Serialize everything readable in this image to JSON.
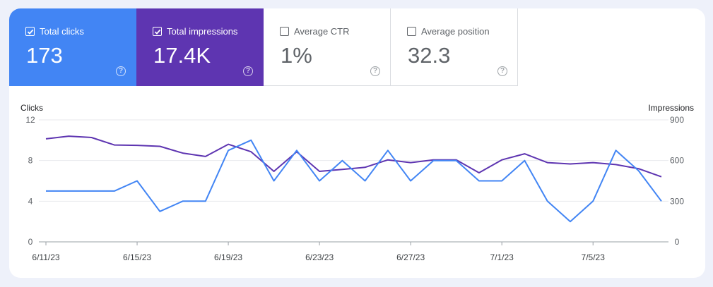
{
  "metrics": [
    {
      "label": "Total clicks",
      "value": "173",
      "checked": true,
      "color": "#4285f4"
    },
    {
      "label": "Total impressions",
      "value": "17.4K",
      "checked": true,
      "color": "#5e35b1"
    },
    {
      "label": "Average CTR",
      "value": "1%",
      "checked": false,
      "color": "#ffffff"
    },
    {
      "label": "Average position",
      "value": "32.3",
      "checked": false,
      "color": "#ffffff"
    }
  ],
  "help_icon": "help-circle-icon",
  "chart_data": {
    "type": "line",
    "y_left_label": "Clicks",
    "y_right_label": "Impressions",
    "y_left_ticks": [
      "0",
      "4",
      "8",
      "12"
    ],
    "y_right_ticks": [
      "0",
      "300",
      "600",
      "900"
    ],
    "y_left_lim": [
      0,
      12
    ],
    "y_right_lim": [
      0,
      900
    ],
    "grid": true,
    "x_tick_labels": [
      "6/11/23",
      "6/15/23",
      "6/19/23",
      "6/23/23",
      "6/27/23",
      "7/1/23",
      "7/5/23"
    ],
    "x": [
      "6/11/23",
      "6/12/23",
      "6/13/23",
      "6/14/23",
      "6/15/23",
      "6/16/23",
      "6/17/23",
      "6/18/23",
      "6/19/23",
      "6/20/23",
      "6/21/23",
      "6/22/23",
      "6/23/23",
      "6/24/23",
      "6/25/23",
      "6/26/23",
      "6/27/23",
      "6/28/23",
      "6/29/23",
      "6/30/23",
      "7/1/23",
      "7/2/23",
      "7/3/23",
      "7/4/23",
      "7/5/23",
      "7/6/23",
      "7/7/23",
      "7/8/23"
    ],
    "series": [
      {
        "name": "Clicks",
        "axis": "left",
        "color": "#4285f4",
        "values": [
          5,
          5,
          5,
          5,
          6,
          3,
          4,
          4,
          9,
          10,
          6,
          9,
          6,
          8,
          6,
          9,
          6,
          8,
          8,
          6,
          6,
          8,
          4,
          2,
          4,
          9,
          7,
          4
        ]
      },
      {
        "name": "Impressions",
        "axis": "right",
        "color": "#5e35b1",
        "values": [
          760,
          780,
          770,
          715,
          712,
          705,
          655,
          630,
          720,
          665,
          520,
          665,
          520,
          535,
          550,
          605,
          585,
          605,
          605,
          510,
          605,
          650,
          585,
          575,
          585,
          570,
          540,
          480
        ]
      }
    ]
  }
}
